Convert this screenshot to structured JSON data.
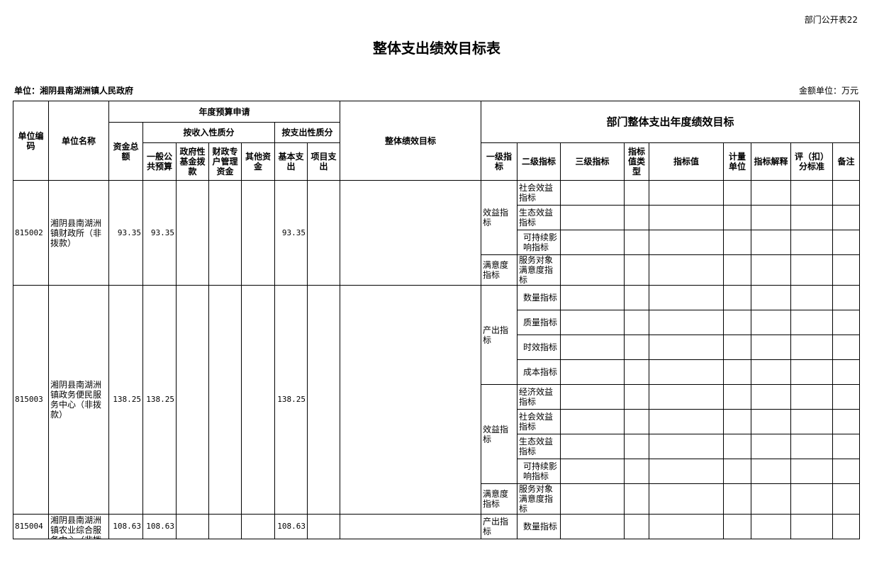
{
  "form_no": "部门公开表22",
  "title": "整体支出绩效目标表",
  "unit_label": "单位：湘阴县南湖洲镇人民政府",
  "money_unit": "金额单位：万元",
  "header": {
    "code": "单位编码",
    "name": "单位名称",
    "budget": "年度预算申请",
    "total": "资金总额",
    "by_income": "按收入性质分",
    "by_expense": "按支出性质分",
    "general": "一般公共预算",
    "gov_fund": "政府性基金拨款",
    "special": "财政专户管理资金",
    "other": "其他资金",
    "basic": "基本支出",
    "project": "项目支出",
    "overall_goal": "整体绩效目标",
    "dept_goal": "部门整体支出年度绩效目标",
    "lvl1": "一级指标",
    "lvl2": "二级指标",
    "lvl3": "三级指标",
    "value_type": "指标值类型",
    "value": "指标值",
    "measure_unit": "计量单位",
    "explain": "指标解释",
    "score": "评（扣）分标准",
    "remark": "备注"
  },
  "groups": [
    {
      "code": "815002",
      "name": "湘阴县南湖洲镇财政所（非拨款）",
      "total": "93.35",
      "general": "93.35",
      "gov_fund": "",
      "special": "",
      "other": "",
      "basic": "93.35",
      "project": "",
      "goal": "",
      "lvl1": [
        {
          "label": "效益指标",
          "lvl2": [
            "社会效益指标",
            "生态效益指标",
            "可持续影响指标"
          ]
        },
        {
          "label": "满意度指标",
          "lvl2": [
            "服务对象满意度指标"
          ]
        }
      ]
    },
    {
      "code": "815003",
      "name": "湘阴县南湖洲镇政务便民服务中心（非拨款）",
      "total": "138.25",
      "general": "138.25",
      "gov_fund": "",
      "special": "",
      "other": "",
      "basic": "138.25",
      "project": "",
      "goal": "",
      "lvl1": [
        {
          "label": "产出指标",
          "lvl2": [
            "数量指标",
            "质量指标",
            "时效指标",
            "成本指标"
          ]
        },
        {
          "label": "效益指标",
          "lvl2": [
            "经济效益指标",
            "社会效益指标",
            "生态效益指标",
            "可持续影响指标"
          ]
        },
        {
          "label": "满意度指标",
          "lvl2": [
            "服务对象满意度指标"
          ]
        }
      ]
    },
    {
      "code": "815004",
      "name": "湘阴县南湖洲镇农业综合服务中心（非拨款）",
      "total": "108.63",
      "general": "108.63",
      "gov_fund": "",
      "special": "",
      "other": "",
      "basic": "108.63",
      "project": "",
      "goal": "",
      "lvl1": [
        {
          "label": "产出指标",
          "lvl2": [
            "数量指标"
          ]
        }
      ]
    }
  ]
}
